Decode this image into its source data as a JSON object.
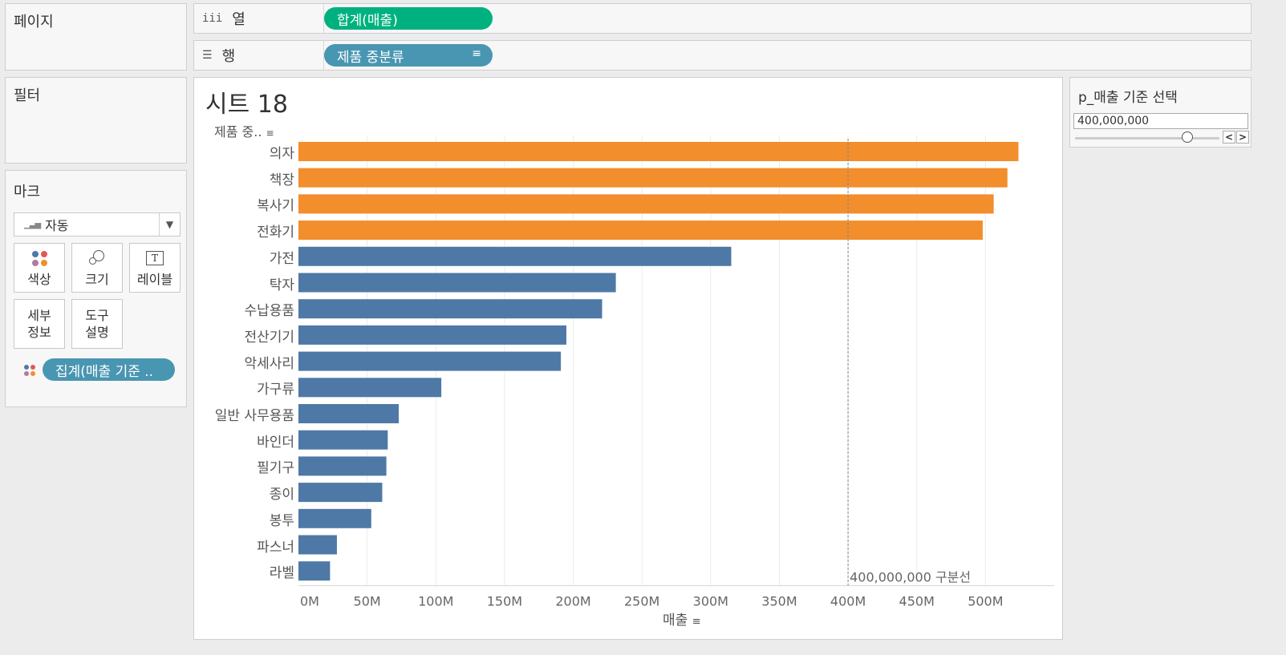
{
  "pages_card": {
    "title": "페이지"
  },
  "filters_card": {
    "title": "필터"
  },
  "marks_card": {
    "title": "마크",
    "mark_type": "자동",
    "buttons": {
      "color": "색상",
      "size": "크기",
      "label": "레이블",
      "detail": "세부\n정보",
      "tooltip": "도구\n설명"
    },
    "color_pill": "집계(매출 기준 .."
  },
  "shelves": {
    "columns": {
      "label": "열",
      "pill": "합계(매출)",
      "pill_color": "#00b180"
    },
    "rows": {
      "label": "행",
      "pill": "제품 중분류",
      "pill_color": "#4996b2"
    }
  },
  "sheet": {
    "title": "시트 18",
    "row_header": "제품 중..",
    "ref_line_label": "400,000,000 구분선",
    "x_axis_title": "매출"
  },
  "chart_data": {
    "type": "bar",
    "orientation": "horizontal",
    "categories": [
      "의자",
      "책장",
      "복사기",
      "전화기",
      "가전",
      "탁자",
      "수납용품",
      "전산기기",
      "악세사리",
      "가구류",
      "일반 사무용품",
      "바인더",
      "필기구",
      "종이",
      "봉투",
      "파스너",
      "라벨"
    ],
    "values": [
      524000000,
      516000000,
      506000000,
      498000000,
      315000000,
      231000000,
      221000000,
      195000000,
      191000000,
      104000000,
      73000000,
      65000000,
      64000000,
      61000000,
      53000000,
      28000000,
      23000000
    ],
    "xlim": [
      0,
      550000000
    ],
    "x_ticks": [
      0,
      50000000,
      100000000,
      150000000,
      200000000,
      250000000,
      300000000,
      350000000,
      400000000,
      450000000,
      500000000
    ],
    "x_tick_labels": [
      "0M",
      "50M",
      "100M",
      "150M",
      "200M",
      "250M",
      "300M",
      "350M",
      "400M",
      "450M",
      "500M"
    ],
    "xlabel": "매출",
    "reference_line": 400000000,
    "colors": {
      "above": "#f28e2b",
      "below": "#4e79a7"
    },
    "grid": true
  },
  "parameter": {
    "title": "p_매출 기준 선택",
    "value": "400,000,000",
    "slider_fraction": 0.78
  }
}
